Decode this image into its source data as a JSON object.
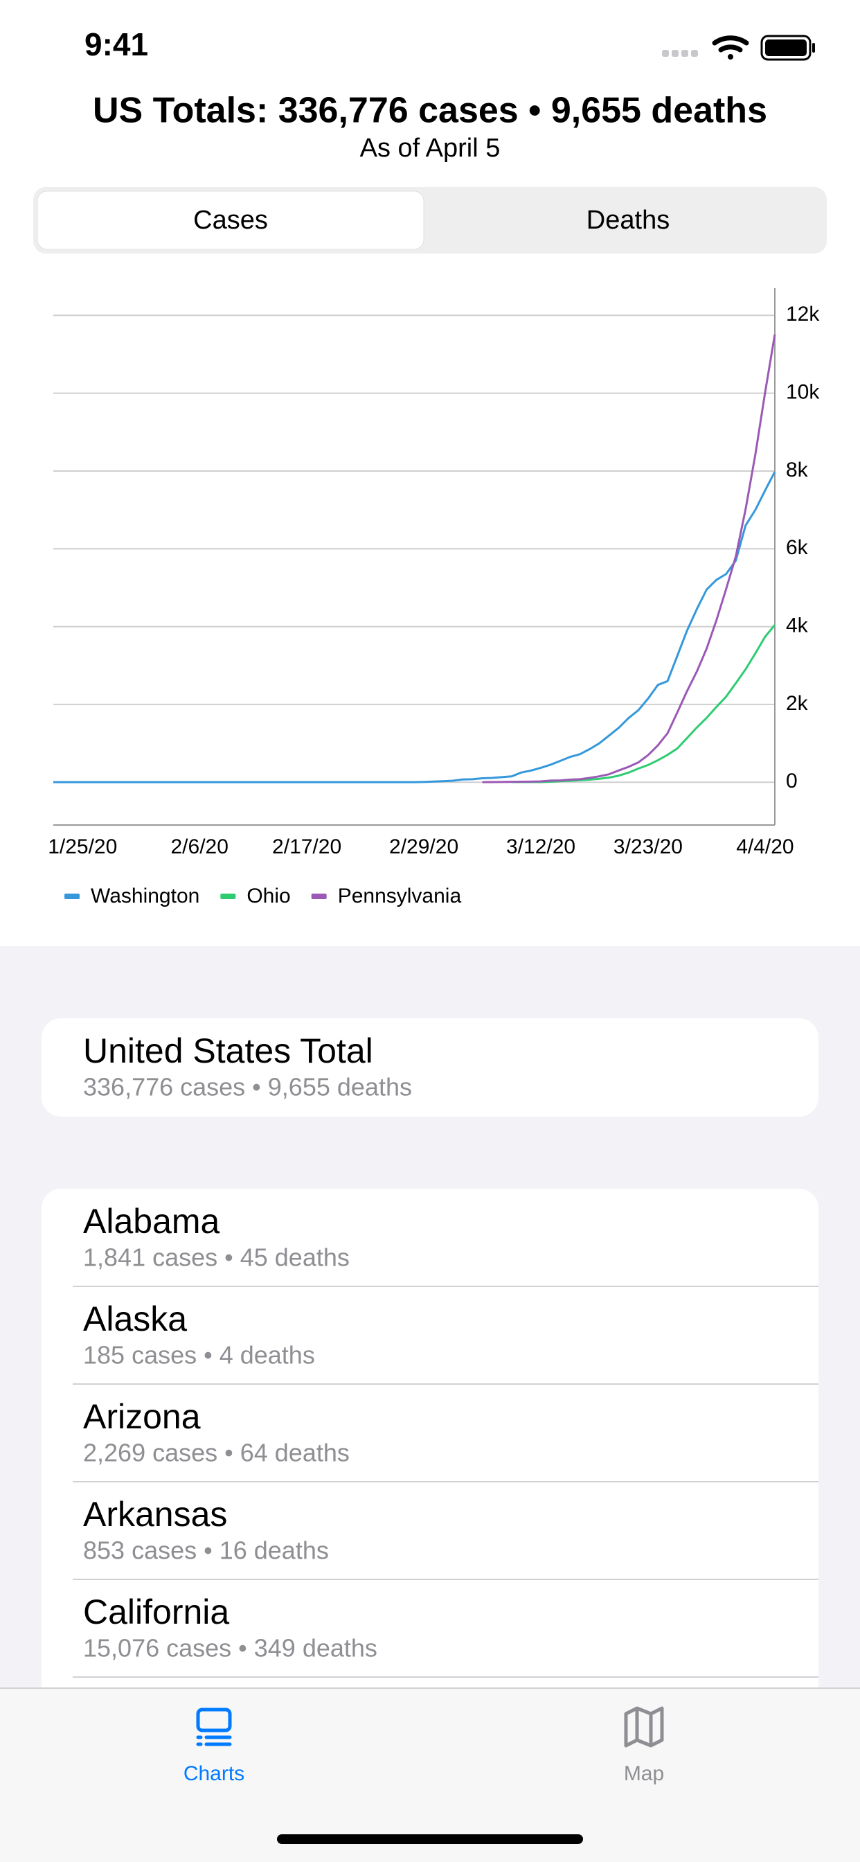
{
  "status_bar": {
    "time": "9:41"
  },
  "header": {
    "title": "US Totals: 336,776 cases • 9,655 deaths",
    "subtitle": "As of April 5"
  },
  "segmented_control": {
    "options": [
      "Cases",
      "Deaths"
    ]
  },
  "chart_data": {
    "type": "line",
    "categories": [
      null,
      null,
      null,
      "1/25/20",
      null,
      null,
      null,
      null,
      null,
      null,
      null,
      null,
      null,
      null,
      null,
      "2/6/20",
      null,
      null,
      null,
      null,
      null,
      null,
      null,
      null,
      null,
      null,
      "2/17/20",
      null,
      null,
      null,
      null,
      null,
      null,
      null,
      null,
      null,
      null,
      null,
      "2/29/20",
      null,
      null,
      null,
      null,
      null,
      null,
      null,
      null,
      null,
      null,
      null,
      "3/12/20",
      null,
      null,
      null,
      null,
      null,
      null,
      null,
      null,
      null,
      null,
      "3/23/20",
      null,
      null,
      null,
      null,
      null,
      null,
      null,
      null,
      null,
      null,
      null,
      "4/4/20",
      null
    ],
    "series": [
      {
        "name": "Washington",
        "color": "#3498db",
        "values": [
          1,
          1,
          1,
          1,
          1,
          1,
          1,
          1,
          1,
          1,
          1,
          1,
          1,
          1,
          1,
          1,
          1,
          1,
          1,
          1,
          1,
          1,
          1,
          1,
          1,
          1,
          1,
          1,
          1,
          1,
          1,
          1,
          1,
          1,
          1,
          1,
          1,
          1,
          7,
          18,
          27,
          39,
          70,
          78,
          102,
          110,
          130,
          150,
          250,
          300,
          370,
          450,
          550,
          650,
          720,
          850,
          1000,
          1200,
          1400,
          1650,
          1850,
          2150,
          2500,
          2600,
          3250,
          3900,
          4450,
          4950,
          5200,
          5350,
          5700,
          6600,
          7000,
          7500,
          7980
        ]
      },
      {
        "name": "Ohio",
        "color": "#2ecc71",
        "values": [
          null,
          null,
          null,
          null,
          null,
          null,
          null,
          null,
          null,
          null,
          null,
          null,
          null,
          null,
          null,
          null,
          null,
          null,
          null,
          null,
          null,
          null,
          null,
          null,
          null,
          null,
          null,
          null,
          null,
          null,
          null,
          null,
          null,
          null,
          null,
          null,
          null,
          null,
          null,
          null,
          null,
          null,
          null,
          null,
          null,
          null,
          null,
          3,
          3,
          4,
          5,
          13,
          26,
          37,
          50,
          67,
          88,
          119,
          169,
          247,
          351,
          442,
          564,
          704,
          867,
          1137,
          1406,
          1653,
          1933,
          2199,
          2547,
          2902,
          3312,
          3739,
          4043
        ]
      },
      {
        "name": "Pennsylvania",
        "color": "#9b59b6",
        "values": [
          null,
          null,
          null,
          null,
          null,
          null,
          null,
          null,
          null,
          null,
          null,
          null,
          null,
          null,
          null,
          null,
          null,
          null,
          null,
          null,
          null,
          null,
          null,
          null,
          null,
          null,
          null,
          null,
          null,
          null,
          null,
          null,
          null,
          null,
          null,
          null,
          null,
          null,
          null,
          null,
          null,
          null,
          null,
          null,
          2,
          4,
          6,
          10,
          12,
          16,
          22,
          41,
          47,
          66,
          77,
          112,
          152,
          206,
          303,
          396,
          509,
          698,
          946,
          1260,
          1795,
          2345,
          2845,
          3432,
          4155,
          4963,
          5805,
          7016,
          8420,
          10017,
          11510
        ]
      }
    ],
    "ylim": [
      -1100,
      12700
    ],
    "yticks": [
      0,
      {
        "value": 2000,
        "label": "2k"
      },
      {
        "value": 4000,
        "label": "4k"
      },
      {
        "value": 6000,
        "label": "6k"
      },
      {
        "value": 8000,
        "label": "8k"
      },
      {
        "value": 10000,
        "label": "10k"
      },
      {
        "value": 12000,
        "label": "12k"
      }
    ],
    "grid": true,
    "legend": "bottom"
  },
  "total_card": {
    "title": "United States Total",
    "subtitle": "336,776 cases • 9,655 deaths"
  },
  "list": [
    {
      "title": "Alabama",
      "subtitle": "1,841 cases • 45 deaths"
    },
    {
      "title": "Alaska",
      "subtitle": "185 cases • 4 deaths"
    },
    {
      "title": "Arizona",
      "subtitle": "2,269 cases • 64 deaths"
    },
    {
      "title": "Arkansas",
      "subtitle": "853 cases • 16 deaths"
    },
    {
      "title": "California",
      "subtitle": "15,076 cases • 349 deaths"
    }
  ],
  "tab_bar": {
    "tabs": [
      "Charts",
      "Map"
    ]
  }
}
